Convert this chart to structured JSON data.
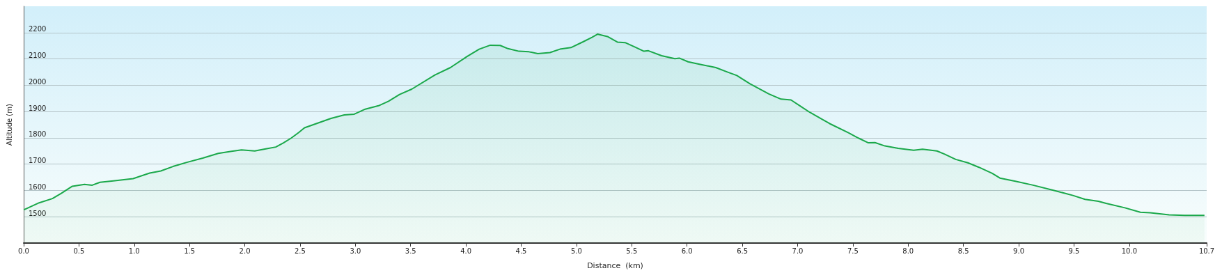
{
  "chart_data": {
    "type": "area",
    "xlabel": "Distance  (km)",
    "ylabel": "Altitude (m)",
    "x": [
      0,
      0.14,
      0.26,
      0.34,
      0.44,
      0.5,
      0.55,
      0.62,
      0.69,
      0.81,
      0.99,
      1.14,
      1.24,
      1.35,
      1.47,
      1.62,
      1.76,
      1.88,
      1.97,
      2.09,
      2.19,
      2.28,
      2.35,
      2.42,
      2.49,
      2.54,
      2.66,
      2.78,
      2.9,
      2.99,
      3.09,
      3.21,
      3.3,
      3.4,
      3.51,
      3.72,
      3.86,
      4.01,
      4.12,
      4.22,
      4.31,
      4.38,
      4.48,
      4.57,
      4.65,
      4.76,
      4.85,
      4.95,
      5.06,
      5.14,
      5.19,
      5.28,
      5.37,
      5.44,
      5.53,
      5.61,
      5.65,
      5.77,
      5.89,
      5.93,
      6.01,
      6.12,
      6.26,
      6.36,
      6.45,
      6.57,
      6.74,
      6.85,
      6.94,
      7.02,
      7.11,
      7.22,
      7.29,
      7.46,
      7.55,
      7.64,
      7.7,
      7.79,
      7.91,
      8.05,
      8.13,
      8.26,
      8.33,
      8.43,
      8.54,
      8.64,
      8.76,
      8.83,
      8.97,
      9.13,
      9.32,
      9.49,
      9.6,
      9.72,
      9.79,
      9.96,
      10.1,
      10.19,
      10.36,
      10.5,
      10.68
    ],
    "series": [
      {
        "color": "#1aa84a",
        "values": [
          1526,
          1553,
          1569,
          1589,
          1616,
          1620,
          1623,
          1620,
          1631,
          1636,
          1645,
          1666,
          1674,
          1691,
          1706,
          1723,
          1741,
          1749,
          1754,
          1750,
          1758,
          1765,
          1781,
          1799,
          1821,
          1838,
          1856,
          1874,
          1887,
          1890,
          1909,
          1922,
          1939,
          1965,
          1985,
          2039,
          2067,
          2109,
          2137,
          2152,
          2151,
          2139,
          2129,
          2127,
          2120,
          2124,
          2137,
          2143,
          2165,
          2182,
          2194,
          2185,
          2164,
          2162,
          2145,
          2129,
          2131,
          2112,
          2101,
          2103,
          2089,
          2079,
          2067,
          2051,
          2037,
          2005,
          1967,
          1947,
          1944,
          1922,
          1897,
          1871,
          1854,
          1819,
          1799,
          1781,
          1782,
          1769,
          1760,
          1753,
          1757,
          1750,
          1738,
          1718,
          1705,
          1688,
          1665,
          1647,
          1635,
          1620,
          1600,
          1581,
          1566,
          1559,
          1551,
          1534,
          1517,
          1515,
          1507,
          1505,
          1505
        ]
      }
    ],
    "xlim": [
      0,
      10.7
    ],
    "xticks": [
      {
        "value": 0,
        "label": "0.0"
      },
      0.5,
      {
        "value": 1,
        "label": "1.0"
      },
      1.5,
      {
        "value": 2,
        "label": "2.0"
      },
      2.5,
      {
        "value": 3,
        "label": "3.0"
      },
      3.5,
      {
        "value": 4,
        "label": "4.0"
      },
      4.5,
      {
        "value": 5,
        "label": "5.0"
      },
      5.5,
      {
        "value": 6,
        "label": "6.0"
      },
      6.5,
      {
        "value": 7,
        "label": "7.0"
      },
      7.5,
      {
        "value": 8,
        "label": "8.0"
      },
      8.5,
      {
        "value": 9,
        "label": "9.0"
      },
      9.5,
      {
        "value": 10,
        "label": "10.0"
      },
      10.7
    ],
    "ylim": [
      1400,
      2300
    ],
    "yticks": [
      1500,
      1600,
      1700,
      1800,
      1900,
      2000,
      2100,
      2200
    ],
    "grid": "y",
    "marker": "none",
    "line_style": "solid"
  }
}
